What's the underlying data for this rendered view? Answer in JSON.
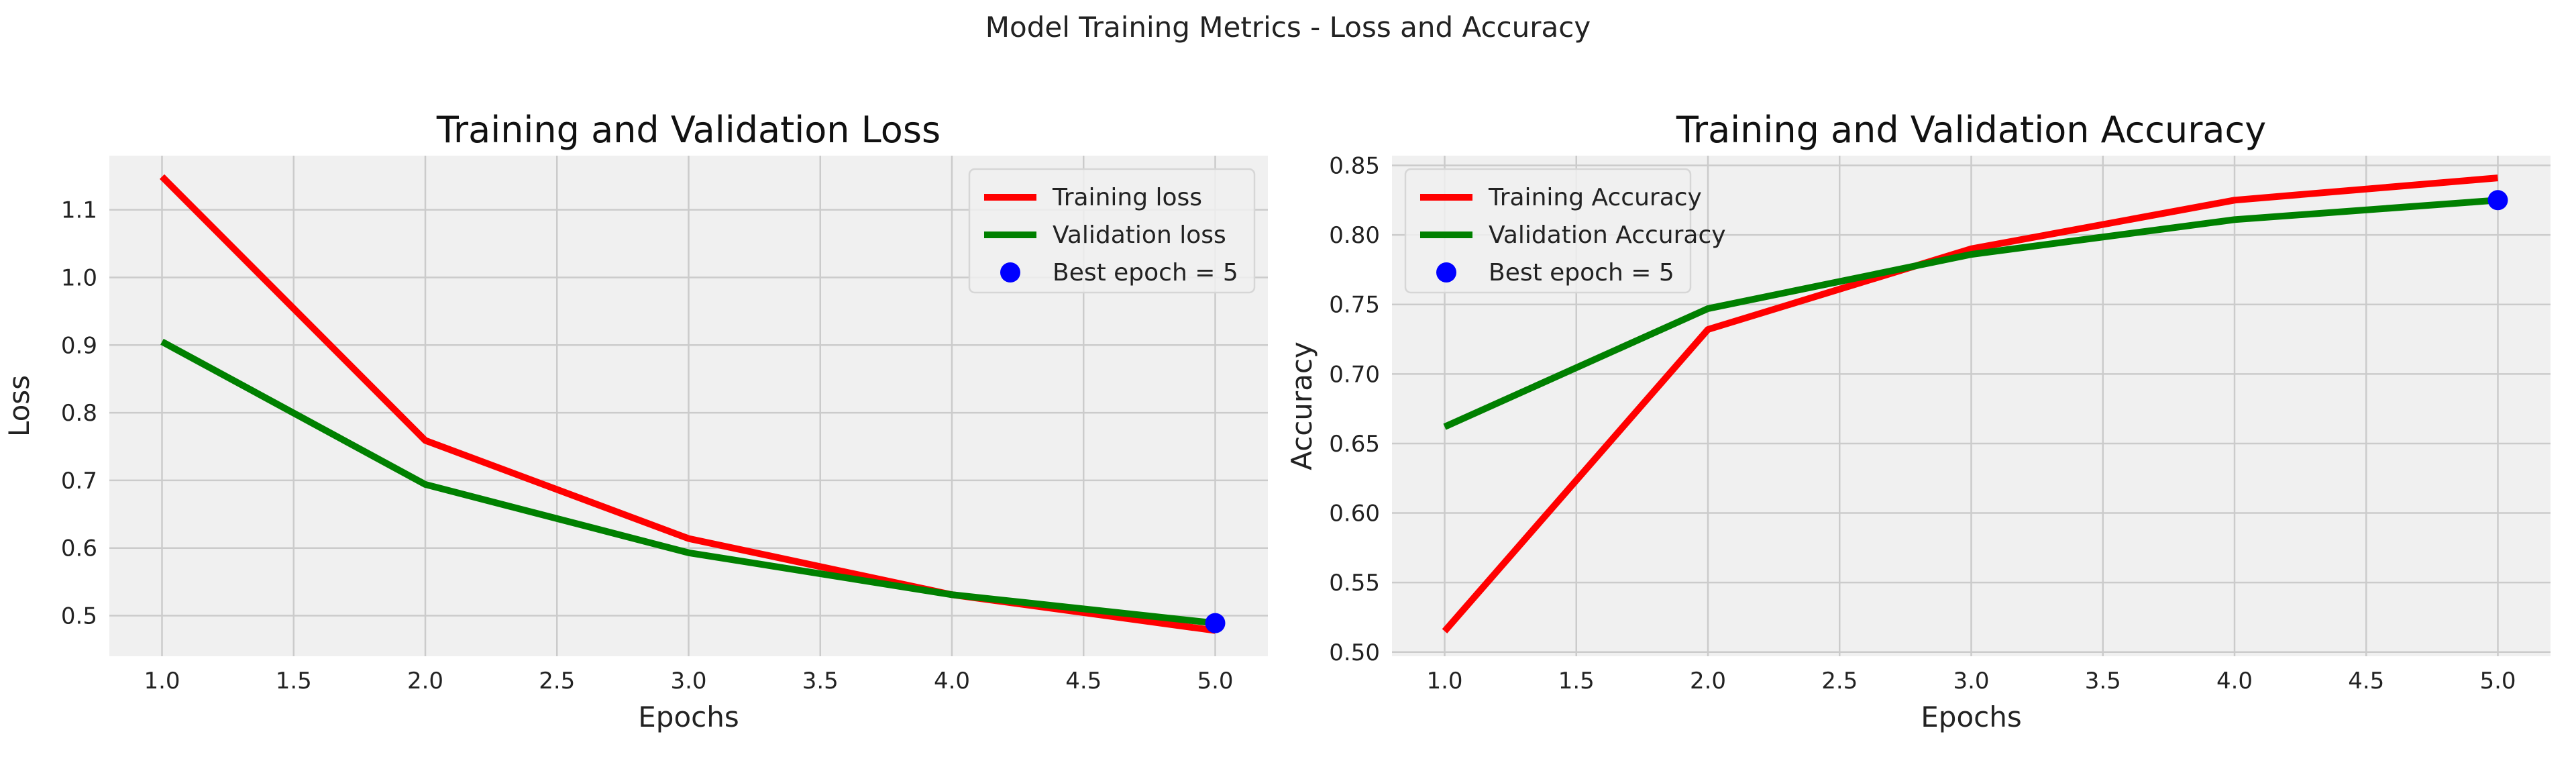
{
  "figure": {
    "suptitle": "Model Training Metrics - Loss and Accuracy"
  },
  "chart_data": [
    {
      "type": "line",
      "title": "Training and Validation Loss",
      "xlabel": "Epochs",
      "ylabel": "Loss",
      "x": [
        1,
        2,
        3,
        4,
        5
      ],
      "xlim": [
        0.8,
        5.2
      ],
      "ylim": [
        0.44,
        1.18
      ],
      "xticks": [
        "1.0",
        "1.5",
        "2.0",
        "2.5",
        "3.0",
        "3.5",
        "4.0",
        "4.5",
        "5.0"
      ],
      "yticks": [
        "0.5",
        "0.6",
        "0.7",
        "0.8",
        "0.9",
        "1.0",
        "1.1"
      ],
      "grid": true,
      "legend_position": "top-right",
      "series": [
        {
          "name": "Training loss",
          "color": "#ff0000",
          "values": [
            1.149,
            0.759,
            0.614,
            0.531,
            0.478
          ]
        },
        {
          "name": "Validation loss",
          "color": "#008000",
          "values": [
            0.905,
            0.694,
            0.593,
            0.531,
            0.489
          ]
        }
      ],
      "best_point": {
        "name": "Best epoch = 5",
        "color": "#0000ff",
        "x": 5,
        "y": 0.489
      }
    },
    {
      "type": "line",
      "title": "Training and Validation Accuracy",
      "xlabel": "Epochs",
      "ylabel": "Accuracy",
      "x": [
        1,
        2,
        3,
        4,
        5
      ],
      "xlim": [
        0.8,
        5.2
      ],
      "ylim": [
        0.497,
        0.857
      ],
      "xticks": [
        "1.0",
        "1.5",
        "2.0",
        "2.5",
        "3.0",
        "3.5",
        "4.0",
        "4.5",
        "5.0"
      ],
      "yticks": [
        "0.50",
        "0.55",
        "0.60",
        "0.65",
        "0.70",
        "0.75",
        "0.80",
        "0.85"
      ],
      "grid": true,
      "legend_position": "top-left",
      "series": [
        {
          "name": "Training Accuracy",
          "color": "#ff0000",
          "values": [
            0.515,
            0.732,
            0.79,
            0.825,
            0.841
          ]
        },
        {
          "name": "Validation Accuracy",
          "color": "#008000",
          "values": [
            0.662,
            0.747,
            0.786,
            0.811,
            0.825
          ]
        }
      ],
      "best_point": {
        "name": "Best epoch = 5",
        "color": "#0000ff",
        "x": 5,
        "y": 0.825
      }
    }
  ]
}
